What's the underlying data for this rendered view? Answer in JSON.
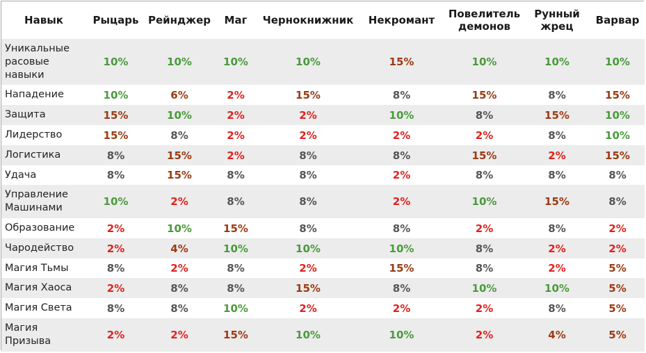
{
  "header": [
    "Навык",
    "Рыцарь",
    "Рейнджер",
    "Маг",
    "Чернокнижник",
    "Некромант",
    "Повелитель демонов",
    "Рунный жрец",
    "Варвар"
  ],
  "colors": {
    "10%": "#4a9a3c",
    "15%": "#9b3a13",
    "6%": "#9b3a13",
    "2%": "#e0221e",
    "4%": "#9b3a13",
    "5%": "#9b3a13",
    "8%": "#555555"
  },
  "rows": [
    {
      "skill": "Уникальные расовые навыки",
      "values": [
        "10%",
        "10%",
        "10%",
        "10%",
        "15%",
        "10%",
        "10%",
        "10%"
      ]
    },
    {
      "skill": "Нападение",
      "values": [
        "10%",
        "6%",
        "2%",
        "15%",
        "8%",
        "15%",
        "8%",
        "15%"
      ]
    },
    {
      "skill": "Защита",
      "values": [
        "15%",
        "10%",
        "2%",
        "2%",
        "10%",
        "8%",
        "15%",
        "10%"
      ]
    },
    {
      "skill": "Лидерство",
      "values": [
        "15%",
        "8%",
        "2%",
        "2%",
        "2%",
        "2%",
        "8%",
        "10%"
      ]
    },
    {
      "skill": "Логистика",
      "values": [
        "8%",
        "15%",
        "2%",
        "8%",
        "8%",
        "15%",
        "2%",
        "15%"
      ]
    },
    {
      "skill": "Удача",
      "values": [
        "8%",
        "15%",
        "8%",
        "8%",
        "2%",
        "8%",
        "8%",
        "8%"
      ]
    },
    {
      "skill": "Управление Машинами",
      "values": [
        "10%",
        "2%",
        "8%",
        "8%",
        "2%",
        "10%",
        "15%",
        "8%"
      ]
    },
    {
      "skill": "Образование",
      "values": [
        "2%",
        "10%",
        "15%",
        "8%",
        "8%",
        "2%",
        "8%",
        "2%"
      ]
    },
    {
      "skill": "Чародейство",
      "values": [
        "2%",
        "4%",
        "10%",
        "10%",
        "10%",
        "8%",
        "2%",
        "2%"
      ]
    },
    {
      "skill": "Магия Тьмы",
      "values": [
        "8%",
        "2%",
        "8%",
        "2%",
        "15%",
        "8%",
        "2%",
        "5%"
      ]
    },
    {
      "skill": "Магия Хаоса",
      "values": [
        "2%",
        "8%",
        "8%",
        "15%",
        "8%",
        "10%",
        "10%",
        "5%"
      ]
    },
    {
      "skill": "Магия Света",
      "values": [
        "8%",
        "8%",
        "10%",
        "2%",
        "2%",
        "2%",
        "8%",
        "5%"
      ]
    },
    {
      "skill": "Магия Призыва",
      "values": [
        "2%",
        "2%",
        "15%",
        "10%",
        "10%",
        "2%",
        "4%",
        "5%"
      ]
    }
  ]
}
